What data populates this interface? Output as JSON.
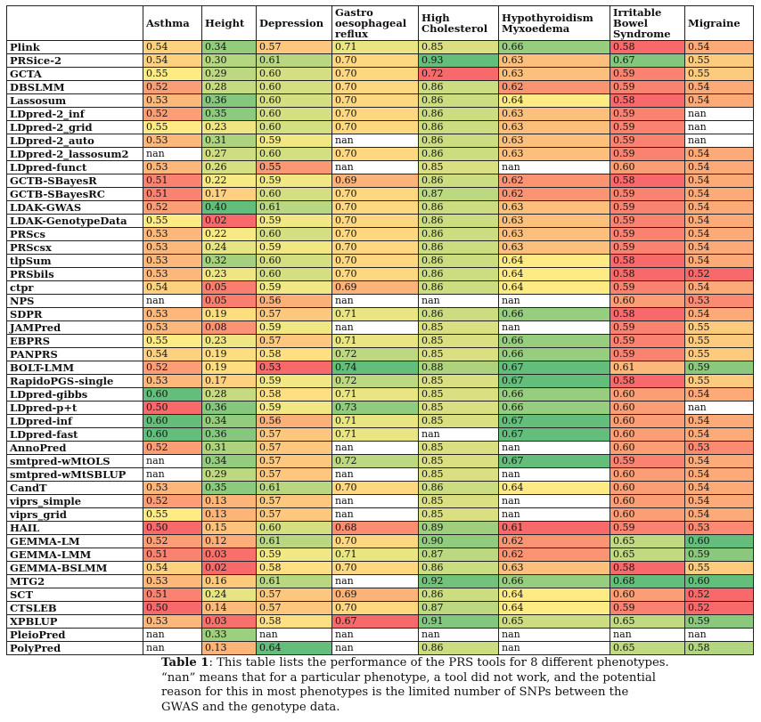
{
  "table": {
    "corner": "",
    "headers": [
      "Asthma",
      "Height",
      "Depression",
      "Gastro oesophageal reflux",
      "High Cholesterol",
      "Hypothyroidism Myxoedema",
      "Irritable Bowel Syndrome",
      "Migraine"
    ],
    "header_lines": [
      [
        "Asthma"
      ],
      [
        "Height"
      ],
      [
        "Depression"
      ],
      [
        "Gastro",
        "oesophageal",
        "reflux"
      ],
      [
        "High",
        "Cholesterol"
      ],
      [
        "Hypothyroidism",
        "Myxoedema"
      ],
      [
        "Irritable",
        "Bowel",
        "Syndrome"
      ],
      [
        "Migraine"
      ]
    ],
    "rows": [
      {
        "tool": "Plink",
        "values": [
          "0.54",
          "0.34",
          "0.57",
          "0.71",
          "0.85",
          "0.66",
          "0.58",
          "0.54"
        ]
      },
      {
        "tool": "PRSice-2",
        "values": [
          "0.54",
          "0.30",
          "0.61",
          "0.70",
          "0.93",
          "0.63",
          "0.67",
          "0.55"
        ]
      },
      {
        "tool": "GCTA",
        "values": [
          "0.55",
          "0.29",
          "0.60",
          "0.70",
          "0.72",
          "0.63",
          "0.59",
          "0.55"
        ]
      },
      {
        "tool": "DBSLMM",
        "values": [
          "0.52",
          "0.28",
          "0.60",
          "0.70",
          "0.86",
          "0.62",
          "0.59",
          "0.54"
        ]
      },
      {
        "tool": "Lassosum",
        "values": [
          "0.53",
          "0.36",
          "0.60",
          "0.70",
          "0.86",
          "0.64",
          "0.58",
          "0.54"
        ]
      },
      {
        "tool": "LDpred-2_inf",
        "values": [
          "0.52",
          "0.35",
          "0.60",
          "0.70",
          "0.86",
          "0.63",
          "0.59",
          "nan"
        ]
      },
      {
        "tool": "LDpred-2_grid",
        "values": [
          "0.55",
          "0.23",
          "0.60",
          "0.70",
          "0.86",
          "0.63",
          "0.59",
          "nan"
        ]
      },
      {
        "tool": "LDpred-2_auto",
        "values": [
          "0.53",
          "0.31",
          "0.59",
          "nan",
          "0.86",
          "0.63",
          "0.59",
          "nan"
        ]
      },
      {
        "tool": "LDpred-2_lassosum2",
        "values": [
          "nan",
          "0.27",
          "0.60",
          "0.70",
          "0.86",
          "0.63",
          "0.59",
          "0.54"
        ]
      },
      {
        "tool": "LDpred-funct",
        "values": [
          "0.53",
          "0.26",
          "0.55",
          "nan",
          "0.85",
          "nan",
          "0.60",
          "0.54"
        ]
      },
      {
        "tool": "GCTB-SBayesR",
        "values": [
          "0.51",
          "0.22",
          "0.59",
          "0.69",
          "0.86",
          "0.62",
          "0.58",
          "0.54"
        ]
      },
      {
        "tool": "GCTB-SBayesRC",
        "values": [
          "0.51",
          "0.17",
          "0.60",
          "0.70",
          "0.87",
          "0.62",
          "0.59",
          "0.54"
        ]
      },
      {
        "tool": "LDAK-GWAS",
        "values": [
          "0.52",
          "0.40",
          "0.61",
          "0.70",
          "0.86",
          "0.63",
          "0.59",
          "0.54"
        ]
      },
      {
        "tool": "LDAK-GenotypeData",
        "values": [
          "0.55",
          "0.02",
          "0.59",
          "0.70",
          "0.86",
          "0.63",
          "0.59",
          "0.54"
        ]
      },
      {
        "tool": "PRScs",
        "values": [
          "0.53",
          "0.22",
          "0.60",
          "0.70",
          "0.86",
          "0.63",
          "0.59",
          "0.54"
        ]
      },
      {
        "tool": "PRScsx",
        "values": [
          "0.53",
          "0.24",
          "0.59",
          "0.70",
          "0.86",
          "0.63",
          "0.59",
          "0.54"
        ]
      },
      {
        "tool": "tlpSum",
        "values": [
          "0.53",
          "0.32",
          "0.60",
          "0.70",
          "0.86",
          "0.64",
          "0.58",
          "0.54"
        ]
      },
      {
        "tool": "PRSbils",
        "values": [
          "0.53",
          "0.23",
          "0.60",
          "0.70",
          "0.86",
          "0.64",
          "0.58",
          "0.52"
        ]
      },
      {
        "tool": "ctpr",
        "values": [
          "0.54",
          "0.05",
          "0.59",
          "0.69",
          "0.86",
          "0.64",
          "0.59",
          "0.54"
        ]
      },
      {
        "tool": "NPS",
        "values": [
          "nan",
          "0.05",
          "0.56",
          "nan",
          "nan",
          "nan",
          "0.60",
          "0.53"
        ]
      },
      {
        "tool": "SDPR",
        "values": [
          "0.53",
          "0.19",
          "0.57",
          "0.71",
          "0.86",
          "0.66",
          "0.58",
          "0.54"
        ]
      },
      {
        "tool": "JAMPred",
        "values": [
          "0.53",
          "0.08",
          "0.59",
          "nan",
          "0.85",
          "nan",
          "0.59",
          "0.55"
        ]
      },
      {
        "tool": "EBPRS",
        "values": [
          "0.55",
          "0.23",
          "0.57",
          "0.71",
          "0.85",
          "0.66",
          "0.59",
          "0.55"
        ]
      },
      {
        "tool": "PANPRS",
        "values": [
          "0.54",
          "0.19",
          "0.58",
          "0.72",
          "0.85",
          "0.66",
          "0.59",
          "0.55"
        ]
      },
      {
        "tool": "BOLT-LMM",
        "values": [
          "0.52",
          "0.19",
          "0.53",
          "0.74",
          "0.88",
          "0.67",
          "0.61",
          "0.59"
        ]
      },
      {
        "tool": "RapidoPGS-single",
        "values": [
          "0.53",
          "0.17",
          "0.59",
          "0.72",
          "0.85",
          "0.67",
          "0.58",
          "0.55"
        ]
      },
      {
        "tool": "LDpred-gibbs",
        "values": [
          "0.60",
          "0.28",
          "0.58",
          "0.71",
          "0.85",
          "0.66",
          "0.60",
          "0.54"
        ]
      },
      {
        "tool": "LDpred-p+t",
        "values": [
          "0.50",
          "0.36",
          "0.59",
          "0.73",
          "0.85",
          "0.66",
          "0.60",
          "nan"
        ]
      },
      {
        "tool": "LDpred-inf",
        "values": [
          "0.60",
          "0.34",
          "0.56",
          "0.71",
          "0.85",
          "0.67",
          "0.60",
          "0.54"
        ]
      },
      {
        "tool": "LDpred-fast",
        "values": [
          "0.60",
          "0.36",
          "0.57",
          "0.71",
          "nan",
          "0.67",
          "0.60",
          "0.54"
        ]
      },
      {
        "tool": "AnnoPred",
        "values": [
          "0.52",
          "0.31",
          "0.57",
          "nan",
          "0.85",
          "nan",
          "0.60",
          "0.53"
        ]
      },
      {
        "tool": "smtpred-wMtOLS",
        "values": [
          "nan",
          "0.34",
          "0.57",
          "0.72",
          "0.85",
          "0.67",
          "0.59",
          "0.54"
        ]
      },
      {
        "tool": "smtpred-wMtSBLUP",
        "values": [
          "nan",
          "0.29",
          "0.57",
          "nan",
          "0.85",
          "nan",
          "0.60",
          "0.54"
        ]
      },
      {
        "tool": "CandT",
        "values": [
          "0.53",
          "0.35",
          "0.61",
          "0.70",
          "0.86",
          "0.64",
          "0.60",
          "0.54"
        ]
      },
      {
        "tool": "viprs_simple",
        "values": [
          "0.52",
          "0.13",
          "0.57",
          "nan",
          "0.85",
          "nan",
          "0.60",
          "0.54"
        ]
      },
      {
        "tool": "viprs_grid",
        "values": [
          "0.55",
          "0.13",
          "0.57",
          "nan",
          "0.85",
          "nan",
          "0.60",
          "0.54"
        ]
      },
      {
        "tool": "HAIL",
        "values": [
          "0.50",
          "0.15",
          "0.60",
          "0.68",
          "0.89",
          "0.61",
          "0.59",
          "0.53"
        ]
      },
      {
        "tool": "GEMMA-LM",
        "values": [
          "0.52",
          "0.12",
          "0.61",
          "0.70",
          "0.90",
          "0.62",
          "0.65",
          "0.60"
        ]
      },
      {
        "tool": "GEMMA-LMM",
        "values": [
          "0.51",
          "0.03",
          "0.59",
          "0.71",
          "0.87",
          "0.62",
          "0.65",
          "0.59"
        ]
      },
      {
        "tool": "GEMMA-BSLMM",
        "values": [
          "0.54",
          "0.02",
          "0.58",
          "0.70",
          "0.86",
          "0.63",
          "0.58",
          "0.55"
        ]
      },
      {
        "tool": "MTG2",
        "values": [
          "0.53",
          "0.16",
          "0.61",
          "nan",
          "0.92",
          "0.66",
          "0.68",
          "0.60"
        ]
      },
      {
        "tool": "SCT",
        "values": [
          "0.51",
          "0.24",
          "0.57",
          "0.69",
          "0.86",
          "0.64",
          "0.60",
          "0.52"
        ]
      },
      {
        "tool": "CTSLEB",
        "values": [
          "0.50",
          "0.14",
          "0.57",
          "0.70",
          "0.87",
          "0.64",
          "0.59",
          "0.52"
        ]
      },
      {
        "tool": "XPBLUP",
        "values": [
          "0.53",
          "0.03",
          "0.58",
          "0.67",
          "0.91",
          "0.65",
          "0.65",
          "0.59"
        ]
      },
      {
        "tool": "PleioPred",
        "values": [
          "nan",
          "0.33",
          "nan",
          "nan",
          "nan",
          "nan",
          "nan",
          "nan"
        ]
      },
      {
        "tool": "PolyPred",
        "values": [
          "nan",
          "0.13",
          "0.64",
          "nan",
          "0.86",
          "nan",
          "0.65",
          "0.58"
        ]
      }
    ],
    "color_scale": {
      "low": "#f8696b",
      "mid": "#ffeb84",
      "high": "#63be7b",
      "nan": "#ffffff"
    }
  },
  "caption": {
    "label": "Table 1",
    "text": ": This table lists the performance of the PRS tools for 8 different phenotypes. “nan” means that for a particular phenotype, a tool did not work, and the potential reason for this in most phenotypes is the limited number of SNPs between the GWAS and the genotype data."
  }
}
